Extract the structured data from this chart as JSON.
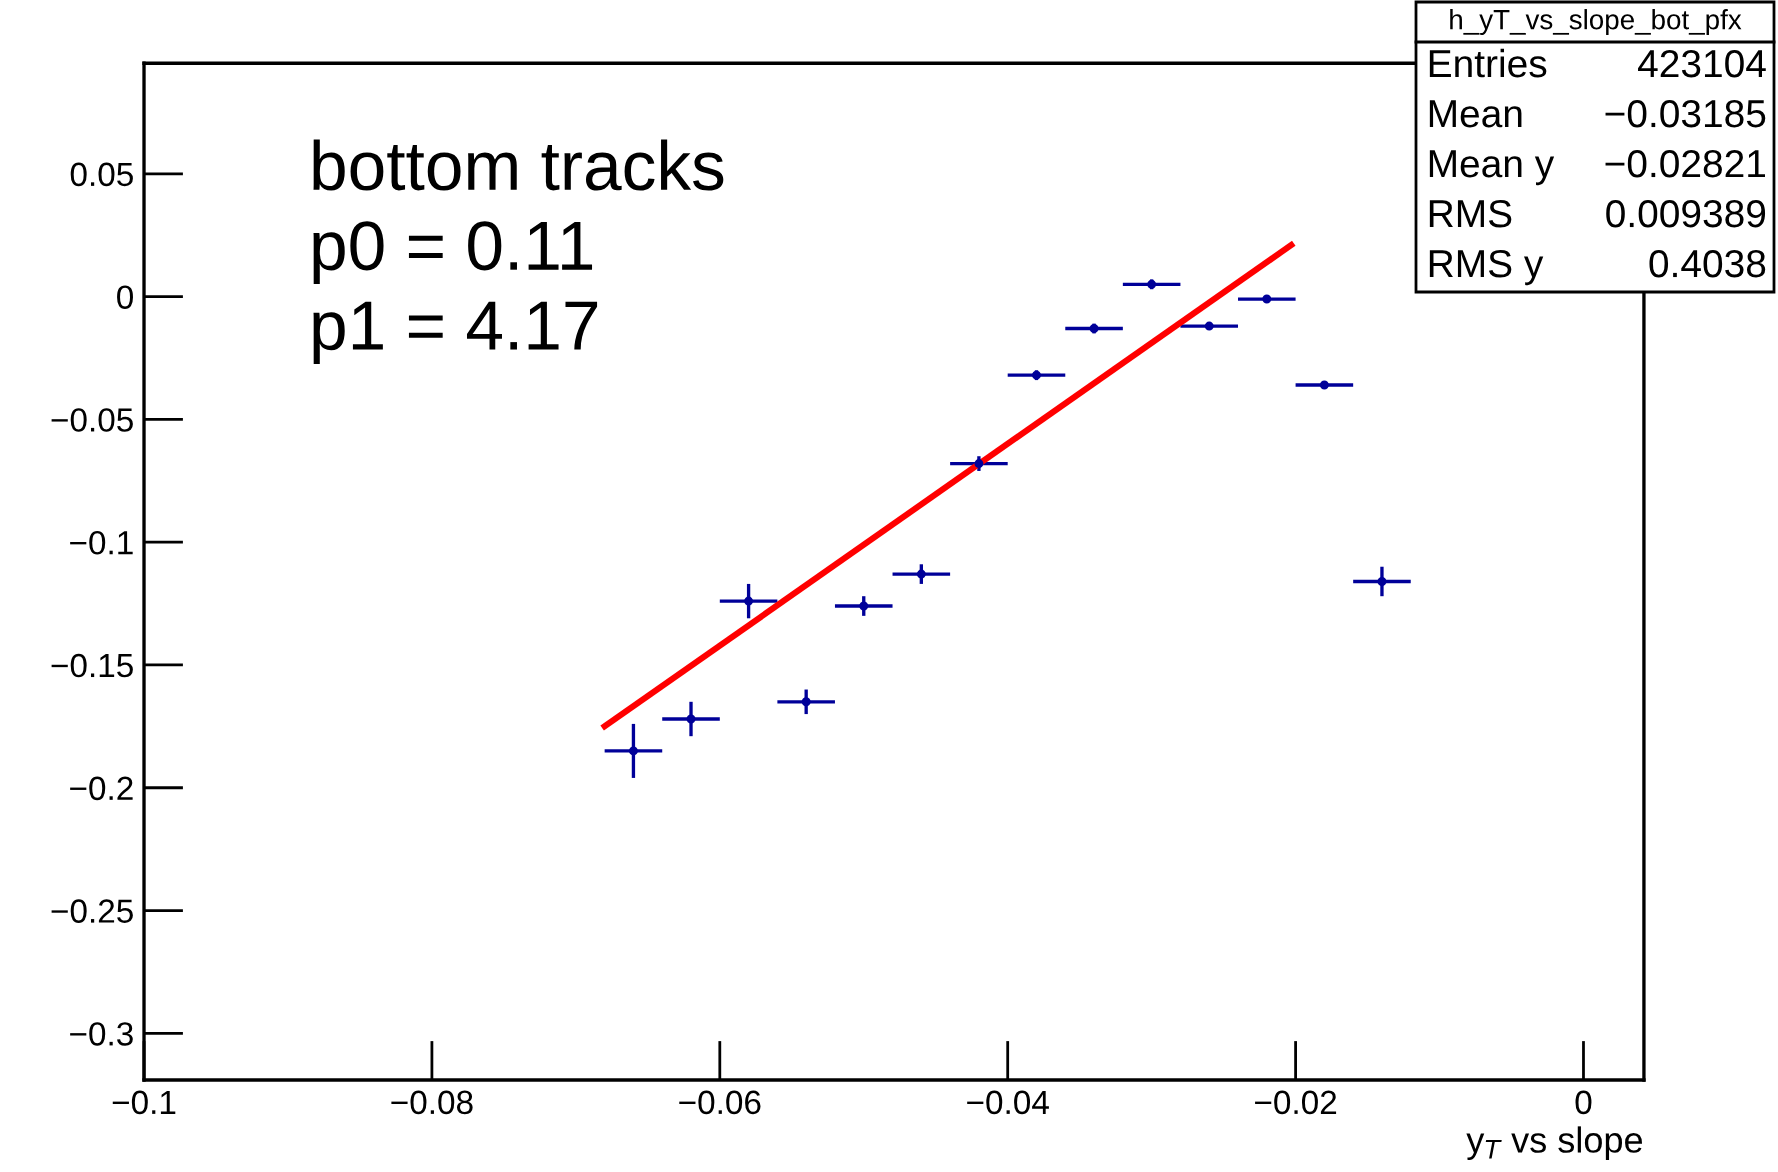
{
  "chart_data": {
    "type": "scatter",
    "xlabel": "y$_{T}$ vs slope",
    "annotations": [
      "bottom tracks\np0 = 0.11\np1 = 4.17",
      "h_yT_vs_slope_bot_pfx",
      "Entries 423104",
      "Mean −0.03185",
      "Mean y −0.02821",
      "RMS 0.009389",
      "RMS y 0.4038"
    ],
    "xlim": [
      -0.1,
      0.0042
    ],
    "ylim": [
      -0.319,
      0.095
    ],
    "xticks": [
      {
        "value": -0.1,
        "label": "−0.1"
      },
      {
        "value": -0.08,
        "label": "−0.08"
      },
      {
        "value": -0.06,
        "label": "−0.06"
      },
      {
        "value": -0.04,
        "label": "−0.04"
      },
      {
        "value": -0.02,
        "label": "−0.02"
      },
      0
    ],
    "yticks": [
      {
        "value": -0.3,
        "label": "−0.3"
      },
      {
        "value": -0.25,
        "label": "−0.25"
      },
      {
        "value": -0.2,
        "label": "−0.2"
      },
      {
        "value": -0.15,
        "label": "−0.15"
      },
      {
        "value": -0.1,
        "label": "−0.1"
      },
      {
        "value": -0.05,
        "label": "−0.05"
      },
      0,
      {
        "value": 0.05,
        "label": "0.05"
      }
    ],
    "series": [
      {
        "color": "#000099",
        "marker": "circle",
        "x": [
          -0.066,
          -0.062,
          -0.058,
          -0.054,
          -0.05,
          -0.046,
          -0.042,
          -0.038,
          -0.034,
          -0.03,
          -0.026,
          -0.022,
          -0.018,
          -0.014
        ],
        "values": [
          -0.185,
          -0.172,
          -0.124,
          -0.165,
          -0.126,
          -0.113,
          -0.068,
          -0.032,
          -0.013,
          0.005,
          -0.012,
          -0.001,
          -0.036,
          -0.116
        ],
        "errors": [
          0.011,
          0.007,
          0.007,
          0.005,
          0.004,
          0.004,
          0.003,
          0.002,
          0.002,
          0.002,
          0.001,
          0.001,
          0.001,
          0.006
        ],
        "xerrors": [
          0.002,
          0.002,
          0.002,
          0.002,
          0.002,
          0.002,
          0.002,
          0.002,
          0.002,
          0.002,
          0.002,
          0.002,
          0.002,
          0.002
        ]
      },
      {
        "type": "line",
        "color": "#ff0000",
        "x": [
          -0.068,
          -0.0203
        ],
        "values": [
          -0.175,
          0.021
        ]
      }
    ]
  }
}
